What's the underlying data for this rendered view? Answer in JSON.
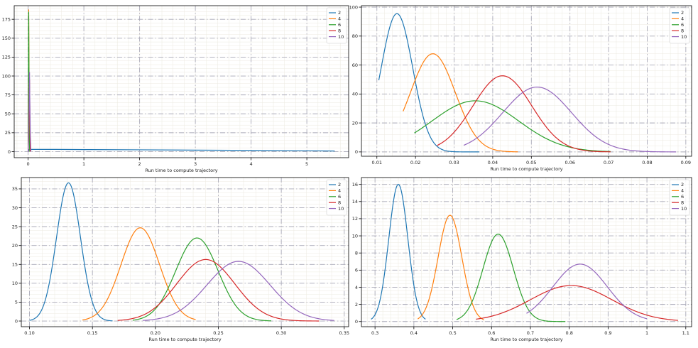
{
  "chart_data": [
    {
      "type": "line",
      "title": "",
      "xlabel": "Run time to compute trajectory",
      "ylabel": "",
      "xlim": [
        -0.25,
        5.75
      ],
      "ylim": [
        -8,
        193
      ],
      "xticks": [
        0,
        1,
        2,
        3,
        4,
        5
      ],
      "yticks": [
        0,
        25,
        50,
        75,
        100,
        125,
        150,
        175
      ],
      "grid": true,
      "legend": "top-right",
      "series": [
        {
          "name": "2",
          "color": "#1f77b4",
          "x": [
            0.0,
            0.02,
            0.5,
            1,
            2,
            3,
            4,
            5,
            5.5
          ],
          "y": [
            0,
            3,
            2.9,
            2.7,
            2.4,
            2.0,
            1.6,
            1.1,
            0.8
          ]
        },
        {
          "name": "4",
          "color": "#ff7f0e",
          "x": [
            0.0,
            0.005,
            0.01,
            0.015,
            0.02,
            0.025,
            0.03
          ],
          "y": [
            0,
            90,
            188,
            120,
            40,
            8,
            0
          ]
        },
        {
          "name": "6",
          "color": "#2ca02c",
          "x": [
            0.0,
            0.005,
            0.01,
            0.015,
            0.02,
            0.025,
            0.03
          ],
          "y": [
            0,
            80,
            185,
            110,
            35,
            6,
            0
          ]
        },
        {
          "name": "8",
          "color": "#d62728",
          "x": [
            0.0,
            0.01,
            0.02,
            0.025,
            0.03,
            0.035,
            0.04
          ],
          "y": [
            0,
            30,
            80,
            95,
            60,
            20,
            0
          ]
        },
        {
          "name": "10",
          "color": "#9467bd",
          "x": [
            0.0,
            0.01,
            0.02,
            0.025,
            0.03,
            0.04,
            0.05
          ],
          "y": [
            0,
            20,
            70,
            105,
            70,
            20,
            0
          ]
        }
      ]
    },
    {
      "type": "line",
      "title": "",
      "xlabel": "Run time to compute trajectory",
      "ylabel": "",
      "xlim": [
        0.006,
        0.0915
      ],
      "ylim": [
        -3,
        101
      ],
      "xticks": [
        0.01,
        0.02,
        0.03,
        0.04,
        0.05,
        0.06,
        0.07,
        0.08,
        0.09
      ],
      "yticks": [
        0,
        20,
        40,
        60,
        80,
        100
      ],
      "grid": true,
      "legend": "top-right",
      "series": [
        {
          "name": "2",
          "color": "#1f77b4",
          "mu": 0.0152,
          "peak": 95.5,
          "sigma": 0.0041,
          "xmin": 0.0105,
          "xmax": 0.0365
        },
        {
          "name": "4",
          "color": "#ff7f0e",
          "mu": 0.0245,
          "peak": 67.8,
          "sigma": 0.0058,
          "xmin": 0.0168,
          "xmax": 0.0465
        },
        {
          "name": "6",
          "color": "#2ca02c",
          "mu": 0.0355,
          "peak": 35.3,
          "sigma": 0.0112,
          "xmin": 0.0197,
          "xmax": 0.0705
        },
        {
          "name": "8",
          "color": "#d62728",
          "mu": 0.0425,
          "peak": 52.6,
          "sigma": 0.0076,
          "xmin": 0.0256,
          "xmax": 0.0705
        },
        {
          "name": "10",
          "color": "#9467bd",
          "mu": 0.0515,
          "peak": 44.8,
          "sigma": 0.0089,
          "xmin": 0.0325,
          "xmax": 0.0875
        }
      ]
    },
    {
      "type": "line",
      "title": "",
      "xlabel": "Run time to compute trajectory",
      "ylabel": "",
      "xlim": [
        0.0935,
        0.3535
      ],
      "ylim": [
        -1.5,
        38
      ],
      "xticks": [
        0.1,
        0.15,
        0.2,
        0.25,
        0.3,
        0.35
      ],
      "xtick_labels": [
        "0.10",
        "0.15",
        "0.20",
        "0.25",
        "0.30",
        "0.35"
      ],
      "yticks": [
        0,
        5,
        10,
        15,
        20,
        25,
        30,
        35
      ],
      "grid": true,
      "legend": "top-right",
      "series": [
        {
          "name": "2",
          "color": "#1f77b4",
          "mu": 0.131,
          "peak": 36.6,
          "sigma": 0.0095,
          "xmin": 0.1,
          "xmax": 0.166
        },
        {
          "name": "4",
          "color": "#ff7f0e",
          "mu": 0.188,
          "peak": 24.7,
          "sigma": 0.0153,
          "xmin": 0.142,
          "xmax": 0.232
        },
        {
          "name": "6",
          "color": "#2ca02c",
          "mu": 0.233,
          "peak": 22.0,
          "sigma": 0.0168,
          "xmin": 0.182,
          "xmax": 0.292
        },
        {
          "name": "8",
          "color": "#d62728",
          "mu": 0.24,
          "peak": 16.3,
          "sigma": 0.023,
          "xmin": 0.17,
          "xmax": 0.33
        },
        {
          "name": "10",
          "color": "#9467bd",
          "mu": 0.266,
          "peak": 15.8,
          "sigma": 0.025,
          "xmin": 0.19,
          "xmax": 0.342
        }
      ]
    },
    {
      "type": "line",
      "title": "",
      "xlabel": "Run time to compute trajectory",
      "ylabel": "",
      "xlim": [
        0.265,
        1.115
      ],
      "ylim": [
        -0.6,
        16.8
      ],
      "xticks": [
        0.3,
        0.4,
        0.5,
        0.6,
        0.7,
        0.8,
        0.9,
        1.0,
        1.1
      ],
      "yticks": [
        0,
        2,
        4,
        6,
        8,
        10,
        12,
        14,
        16
      ],
      "grid": true,
      "legend": "top-right",
      "series": [
        {
          "name": "2",
          "color": "#1f77b4",
          "mu": 0.36,
          "peak": 16.0,
          "sigma": 0.0245,
          "xmin": 0.29,
          "xmax": 0.43
        },
        {
          "name": "4",
          "color": "#ff7f0e",
          "mu": 0.493,
          "peak": 12.4,
          "sigma": 0.0305,
          "xmin": 0.41,
          "xmax": 0.58
        },
        {
          "name": "6",
          "color": "#2ca02c",
          "mu": 0.617,
          "peak": 10.2,
          "sigma": 0.039,
          "xmin": 0.51,
          "xmax": 0.79
        },
        {
          "name": "8",
          "color": "#d62728",
          "mu": 0.805,
          "peak": 4.2,
          "sigma": 0.105,
          "xmin": 0.56,
          "xmax": 1.08
        },
        {
          "name": "10",
          "color": "#9467bd",
          "mu": 0.828,
          "peak": 6.7,
          "sigma": 0.07,
          "xmin": 0.69,
          "xmax": 1.0
        }
      ]
    }
  ]
}
